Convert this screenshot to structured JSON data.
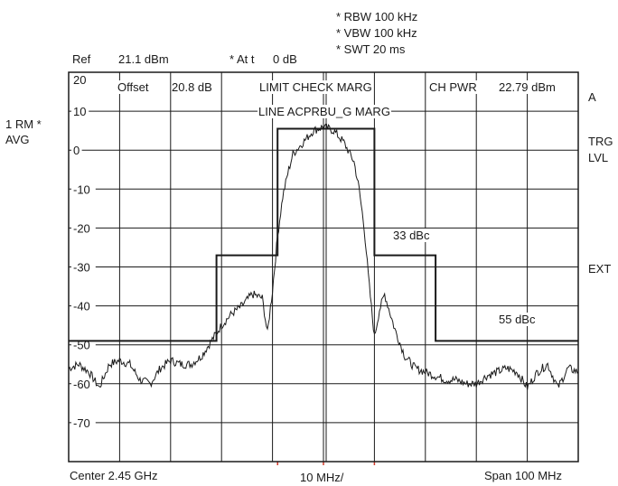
{
  "settings": {
    "rbw": "* RBW 100 kHz",
    "vbw": "* VBW 100 kHz",
    "swt": "* SWT 20 ms"
  },
  "header": {
    "ref_label": "Ref",
    "ref_value": "21.1 dBm",
    "att_label": "* At t",
    "att_value": "0 dB"
  },
  "side_left": {
    "rm": "1 RM *",
    "avg": "AVG"
  },
  "side_right": {
    "a": "A",
    "trg": "TRG",
    "lvl": "LVL",
    "ext": "EXT"
  },
  "annotations": {
    "offset": "Offset",
    "offset_value": "20.8 dB",
    "limit_check": "LIMIT CHECK MARG",
    "limit_line": "LINE ACPRBU_G MARG",
    "ch_pwr_label": "CH PWR",
    "ch_pwr_value": "22.79 dBm",
    "dbc_33": "33 dBc",
    "dbc_55": "55 dBc"
  },
  "footer": {
    "center": "Center 2.45 GHz",
    "div": "10 MHz/",
    "span": "Span 100 MHz"
  },
  "chart_data": {
    "type": "line",
    "y_tick_labels": [
      "20",
      "10",
      "0",
      "-10",
      "-20",
      "-30",
      "-40",
      "-50",
      "-60",
      "-70"
    ],
    "ylim": [
      -80,
      20
    ],
    "xlim": [
      2400,
      2500
    ],
    "x_unit": "MHz",
    "y_unit": "dBm",
    "grid": true,
    "series": [
      {
        "role": "trace",
        "x": [
          2400,
          2402,
          2404,
          2406,
          2408,
          2410,
          2412,
          2414,
          2416,
          2418,
          2420,
          2422,
          2424,
          2426,
          2428,
          2430,
          2432,
          2434,
          2436,
          2438,
          2439,
          2440,
          2441,
          2442,
          2443,
          2444,
          2446,
          2448,
          2450,
          2452,
          2454,
          2456,
          2457,
          2458,
          2459,
          2460,
          2461,
          2462,
          2464,
          2466,
          2468,
          2470,
          2472,
          2474,
          2476,
          2478,
          2480,
          2482,
          2484,
          2486,
          2488,
          2490,
          2492,
          2494,
          2496,
          2498,
          2500
        ],
        "y": [
          -56,
          -55,
          -57,
          -61,
          -55,
          -54,
          -55,
          -59,
          -60,
          -56,
          -54,
          -55,
          -55,
          -53,
          -49,
          -45,
          -42,
          -40,
          -37,
          -38,
          -47,
          -36,
          -22,
          -12,
          -6,
          -1,
          2,
          5,
          6,
          5,
          2,
          -3,
          -10,
          -20,
          -35,
          -48,
          -41,
          -37,
          -46,
          -53,
          -56,
          -57,
          -58,
          -59,
          -59,
          -60,
          -60,
          -58,
          -57,
          -56,
          -57,
          -61,
          -57,
          -55,
          -61,
          -56,
          -57
        ]
      },
      {
        "role": "limit-line",
        "x": [
          2400,
          2429,
          2429,
          2441,
          2441,
          2460,
          2460,
          2472,
          2472,
          2500
        ],
        "y": [
          -49,
          -49,
          -27,
          -27,
          5.5,
          5.5,
          -27,
          -27,
          -49,
          -49
        ]
      }
    ]
  }
}
